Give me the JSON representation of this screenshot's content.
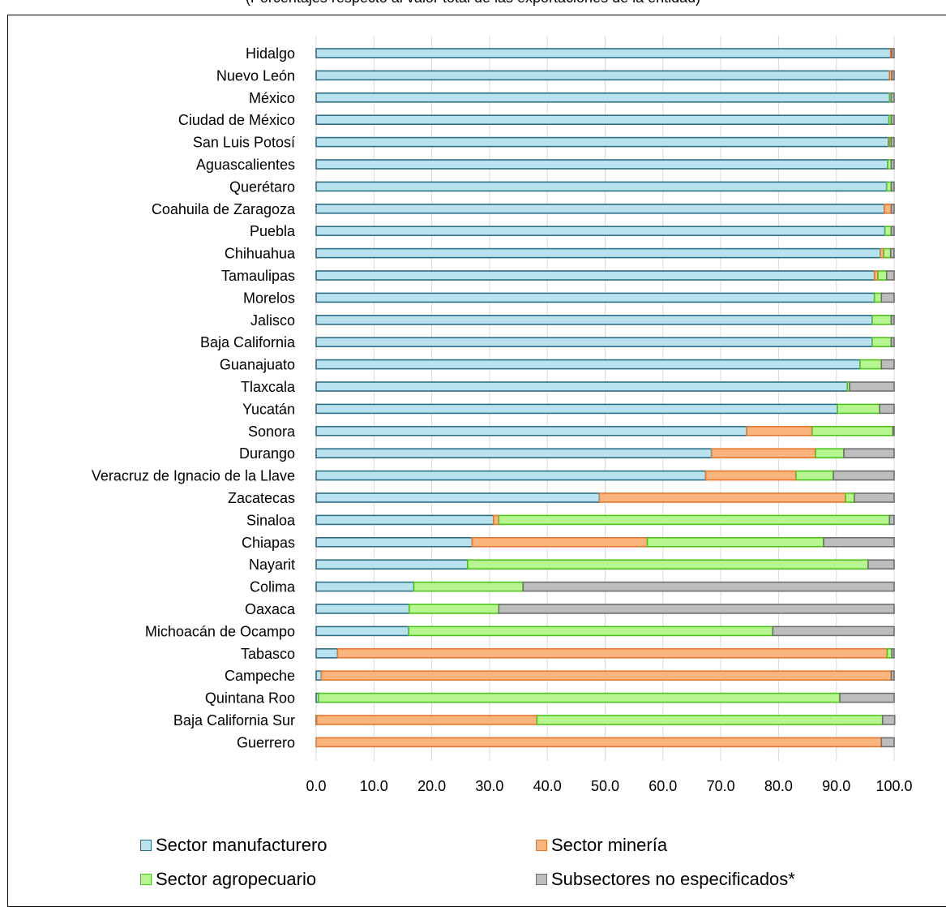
{
  "subtitle": "(Porcentajes respecto al valor total de las exportaciones de la entidad)",
  "colors": {
    "manufacturero": "#b8e3ee",
    "manufacturero_edge": "#2f6f86",
    "mineria": "#f9b57d",
    "mineria_edge": "#e6772e",
    "agropecuario": "#b6f58f",
    "agropecuario_edge": "#4fc31d",
    "no_especificados": "#bdbdbd",
    "no_especificados_edge": "#6f6f6f",
    "grid": "#d9d9d9"
  },
  "legend": [
    {
      "label": "Sector manufacturero",
      "color": "#b8e3ee",
      "edge": "#2f6f86"
    },
    {
      "label": "Sector minería",
      "color": "#f9b57d",
      "edge": "#e6772e"
    },
    {
      "label": "Sector agropecuario",
      "color": "#b6f58f",
      "edge": "#4fc31d"
    },
    {
      "label": "Subsectores no especificados*",
      "color": "#bdbdbd",
      "edge": "#6f6f6f"
    }
  ],
  "chart_data": {
    "type": "bar",
    "orientation": "horizontal",
    "stacked": true,
    "title": "",
    "xlabel": "",
    "ylabel": "",
    "xlim": [
      0,
      100
    ],
    "xticks": [
      "0.0",
      "10.0",
      "20.0",
      "30.0",
      "40.0",
      "50.0",
      "60.0",
      "70.0",
      "80.0",
      "90.0",
      "100.0"
    ],
    "grid": "vertical",
    "legend_position": "bottom",
    "categories": [
      "Hidalgo",
      "Nuevo León",
      "México",
      "Ciudad de México",
      "San Luis Potosí",
      "Aguascalientes",
      "Querétaro",
      "Coahuila de Zaragoza",
      "Puebla",
      "Chihuahua",
      "Tamaulipas",
      "Morelos",
      "Jalisco",
      "Baja California",
      "Guanajuato",
      "Tlaxcala",
      "Yucatán",
      "Sonora",
      "Durango",
      "Veracruz de Ignacio de la Llave",
      "Zacatecas",
      "Sinaloa",
      "Chiapas",
      "Nayarit",
      "Colima",
      "Oaxaca",
      "Michoacán de Ocampo",
      "Tabasco",
      "Campeche",
      "Quintana Roo",
      "Baja California Sur",
      "Guerrero"
    ],
    "series": [
      {
        "name": "Sector manufacturero",
        "values": [
          99.4,
          99.2,
          99.2,
          99.1,
          99.0,
          98.9,
          98.7,
          98.3,
          98.4,
          97.6,
          96.6,
          96.6,
          96.2,
          96.2,
          94.1,
          91.9,
          90.2,
          74.5,
          68.4,
          67.4,
          49.0,
          30.7,
          27.0,
          26.2,
          16.9,
          16.1,
          16.0,
          3.7,
          0.9,
          0.4,
          0.1,
          0.0
        ]
      },
      {
        "name": "Sector minería",
        "values": [
          0.2,
          0.4,
          0.0,
          0.0,
          0.2,
          0.0,
          0.0,
          1.2,
          0.0,
          0.6,
          0.6,
          0.0,
          0.0,
          0.0,
          0.0,
          0.0,
          0.0,
          11.3,
          18.0,
          15.6,
          42.6,
          0.9,
          30.3,
          0.0,
          0.0,
          0.0,
          0.0,
          95.1,
          98.6,
          0.0,
          38.1,
          97.8
        ]
      },
      {
        "name": "Sector agropecuario",
        "values": [
          0.0,
          0.0,
          0.3,
          0.4,
          0.3,
          0.6,
          0.8,
          0.0,
          1.1,
          1.2,
          1.5,
          1.2,
          3.3,
          3.3,
          3.7,
          0.4,
          7.3,
          14.0,
          4.9,
          6.5,
          1.5,
          67.6,
          30.5,
          69.3,
          18.9,
          15.5,
          63.0,
          0.8,
          0.0,
          90.2,
          59.8,
          0.0
        ]
      },
      {
        "name": "Subsectores no especificados*",
        "values": [
          0.4,
          0.4,
          0.5,
          0.5,
          0.5,
          0.5,
          0.5,
          0.5,
          0.5,
          0.6,
          1.3,
          2.2,
          0.5,
          0.5,
          2.2,
          7.7,
          2.5,
          0.2,
          8.7,
          10.5,
          6.9,
          0.8,
          12.2,
          4.5,
          64.2,
          68.4,
          21.0,
          0.4,
          0.5,
          9.4,
          2.1,
          2.2
        ]
      }
    ]
  }
}
